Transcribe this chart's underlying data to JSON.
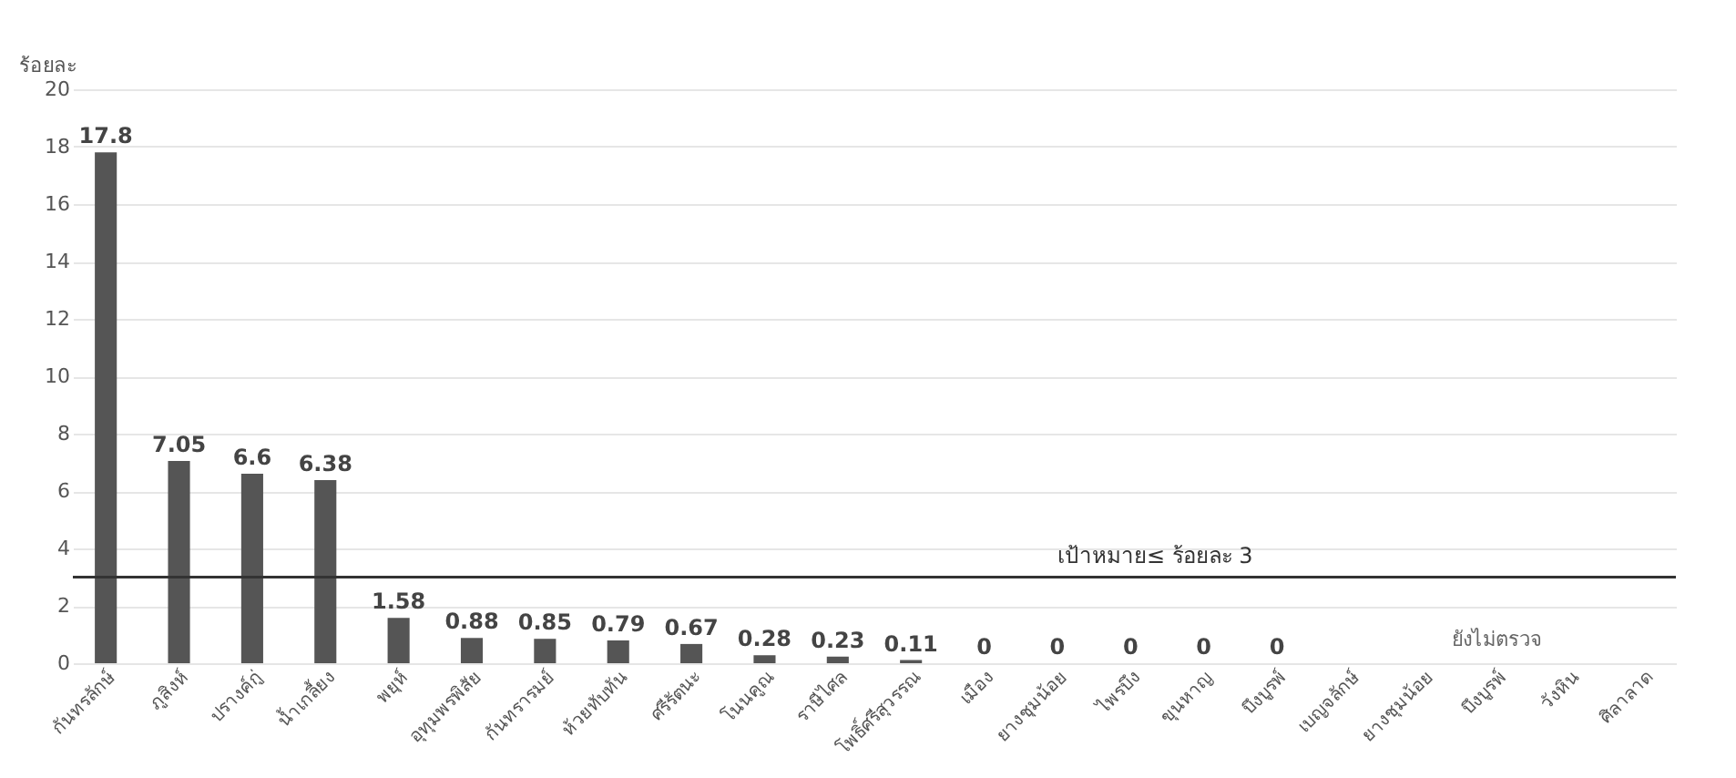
{
  "chart_data": {
    "type": "bar",
    "ylabel": "ร้อยละ",
    "categories": [
      "กันทรลักษ์",
      "ภูสิงห์",
      "ปรางค์กู่",
      "น้ำเกลี้ยง",
      "พยุห์",
      "อุทุมพรพิสัย",
      "กันทรารมย์",
      "ห้วยทับทัน",
      "ศรีรัตนะ",
      "โนนคูณ",
      "ราษีไศล",
      "โพธิ์ศรีสุวรรณ",
      "เมือง",
      "ยางชุมน้อย",
      "ไพรบึง",
      "ขุนหาญ",
      "บึงบูรพ์",
      "เบญจลักษ์",
      "ยางชุมน้อย",
      "บึงบูรพ์",
      "วังหิน",
      "ศิลาลาด"
    ],
    "values": [
      17.8,
      7.05,
      6.6,
      6.38,
      1.58,
      0.88,
      0.85,
      0.79,
      0.67,
      0.28,
      0.23,
      0.11,
      0,
      0,
      0,
      0,
      0,
      null,
      null,
      null,
      null,
      null
    ],
    "color": "#555555",
    "data_labels": true,
    "ylim": [
      0,
      20
    ],
    "yticks": [
      0,
      2,
      4,
      6,
      8,
      10,
      12,
      14,
      16,
      18,
      20
    ],
    "grid": "y",
    "ref_lines": [
      {
        "axis": "y",
        "value": 3,
        "label": "เป้าหมาย≤ ร้อยละ 3",
        "color": "#333333"
      }
    ],
    "annotations": [
      "ยังไม่ตรวจ"
    ]
  }
}
